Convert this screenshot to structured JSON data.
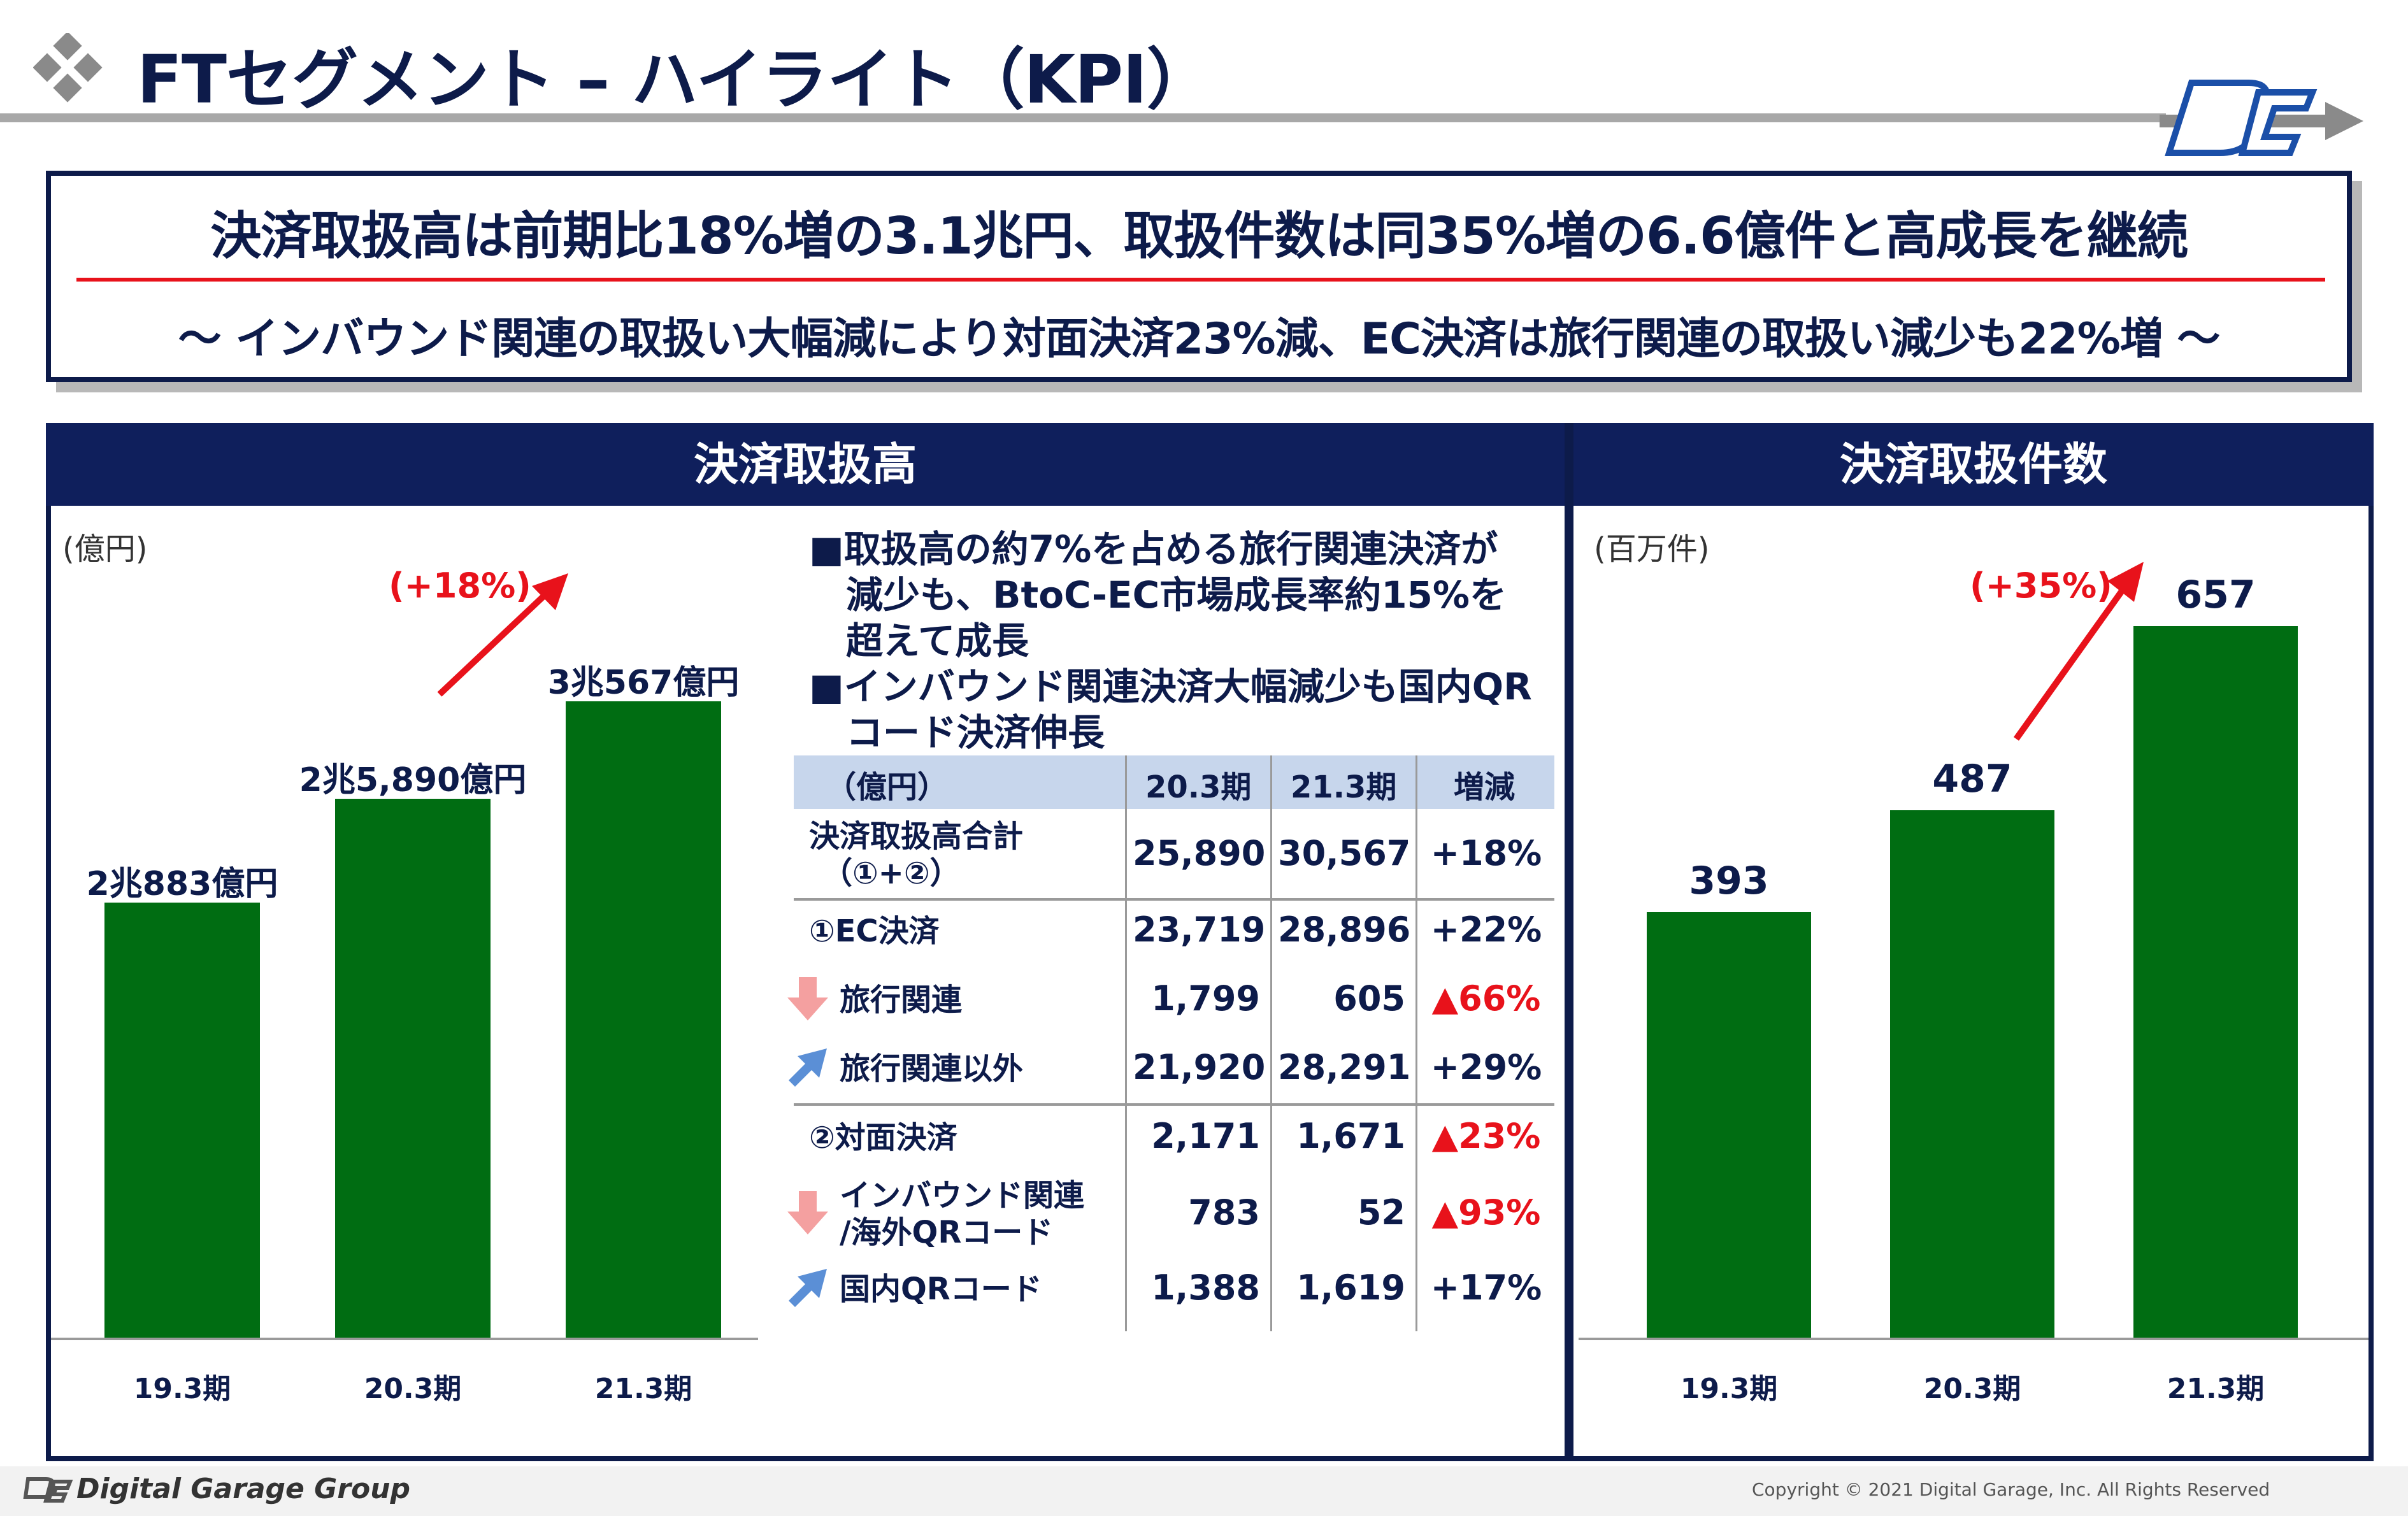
{
  "header": {
    "title": "FTセグメント – ハイライト（KPI）"
  },
  "summary": {
    "headline": "決済取扱高は前期比18%増の3.1兆円、取扱件数は同35%増の6.6億件と高成長を継続",
    "subline": "～ インバウンド関連の取扱い大幅減により対面決済23%減、EC決済は旅行関連の取扱い減少も22%増 ～"
  },
  "left_panel": {
    "title": "決済取扱高",
    "unit": "(億円)",
    "growth": "(+18%)"
  },
  "right_panel": {
    "title": "決済取扱件数",
    "unit": "(百万件)",
    "growth": "(+35%)"
  },
  "notes": [
    "■取扱高の約7%を占める旅行関連決済が",
    "減少も、BtoC-EC市場成長率約15%を",
    "超えて成長",
    "■インバウンド関連決済大幅減少も国内QR",
    "コード決済伸長"
  ],
  "table": {
    "headers": [
      "（億円）",
      "20.3期",
      "21.3期",
      "増減"
    ],
    "rows": [
      {
        "label": "決済取扱高合計",
        "label2": "（①+②）",
        "v1": "25,890",
        "v2": "30,567",
        "chg": "+18%",
        "neg": false,
        "arrow": ""
      },
      {
        "label": "①EC決済",
        "label2": "",
        "v1": "23,719",
        "v2": "28,896",
        "chg": "+22%",
        "neg": false,
        "arrow": ""
      },
      {
        "label": "旅行関連",
        "label2": "",
        "v1": "1,799",
        "v2": "605",
        "chg": "▲66%",
        "neg": true,
        "arrow": "down"
      },
      {
        "label": "旅行関連以外",
        "label2": "",
        "v1": "21,920",
        "v2": "28,291",
        "chg": "+29%",
        "neg": false,
        "arrow": "up"
      },
      {
        "label": "②対面決済",
        "label2": "",
        "v1": "2,171",
        "v2": "1,671",
        "chg": "▲23%",
        "neg": true,
        "arrow": ""
      },
      {
        "label": "インバウンド関連",
        "label2": "/海外QRコード",
        "v1": "783",
        "v2": "52",
        "chg": "▲93%",
        "neg": true,
        "arrow": "down"
      },
      {
        "label": "国内QRコード",
        "label2": "",
        "v1": "1,388",
        "v2": "1,619",
        "chg": "+17%",
        "neg": false,
        "arrow": "up"
      }
    ]
  },
  "chart_data": [
    {
      "type": "bar",
      "title": "決済取扱高",
      "ylabel": "(億円)",
      "categories": [
        "19.3期",
        "20.3期",
        "21.3期"
      ],
      "values": [
        20883,
        25890,
        30567
      ],
      "data_labels": [
        "2兆883億円",
        "2兆5,890億円",
        "3兆567億円"
      ],
      "ylim": [
        0,
        34500
      ],
      "annotation": "(+18%)",
      "color": "#006d12"
    },
    {
      "type": "bar",
      "title": "決済取扱件数",
      "ylabel": "(百万件)",
      "categories": [
        "19.3期",
        "20.3期",
        "21.3期"
      ],
      "values": [
        393,
        487,
        657
      ],
      "data_labels": [
        "393",
        "487",
        "657"
      ],
      "ylim": [
        0,
        720
      ],
      "annotation": "(+35%)",
      "color": "#006d12"
    }
  ],
  "footer": {
    "brand": "Digital Garage Group",
    "copyright": "Copyright © 2021 Digital Garage, Inc. All Rights Reserved"
  },
  "colors": {
    "navy": "#0f1f5c",
    "bar_green": "#006d12",
    "accent_red": "#e8121b",
    "table_header": "#c7d6ec"
  }
}
